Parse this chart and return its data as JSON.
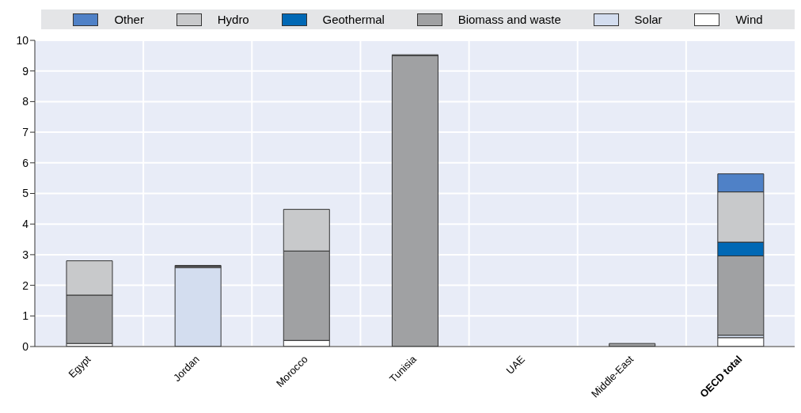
{
  "chart_data": {
    "type": "bar",
    "stacked": true,
    "categories": [
      "Egypt",
      "Jordan",
      "Morocco",
      "Tunisia",
      "UAE",
      "Middle-East",
      "OECD total"
    ],
    "series": [
      {
        "name": "Wind",
        "color": "#ffffff",
        "values": [
          0.1,
          null,
          0.2,
          null,
          0,
          null,
          0.29
        ]
      },
      {
        "name": "Solar",
        "color": "#d3ddef",
        "values": [
          0,
          2.58,
          0,
          0,
          0,
          0,
          0.08
        ]
      },
      {
        "name": "Biomass and waste",
        "color": "#a0a1a3",
        "values": [
          1.58,
          0.04,
          2.92,
          9.5,
          0,
          0.1,
          2.59
        ]
      },
      {
        "name": "Geothermal",
        "color": "#0068b5",
        "values": [
          0,
          0,
          0,
          0,
          0,
          0,
          0.45
        ]
      },
      {
        "name": "Hydro",
        "color": "#c8c9cb",
        "values": [
          1.12,
          0.03,
          1.36,
          0.03,
          0,
          0,
          1.64
        ]
      },
      {
        "name": "Other",
        "color": "#4f81c7",
        "values": [
          0,
          0,
          0,
          0,
          0,
          0,
          0.59
        ]
      }
    ],
    "ylim": [
      0,
      10
    ],
    "yticks": [
      0,
      1,
      2,
      3,
      4,
      5,
      6,
      7,
      8,
      9,
      10
    ],
    "grid": true,
    "legend": "top"
  }
}
